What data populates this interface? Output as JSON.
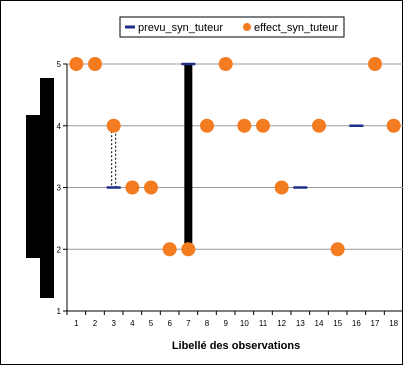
{
  "chart_data": {
    "type": "scatter",
    "xlabel": "Libellé des observations",
    "ylabel": "",
    "title": "",
    "categories": [
      "1",
      "2",
      "3",
      "4",
      "5",
      "6",
      "7",
      "8",
      "9",
      "10",
      "11",
      "12",
      "13",
      "14",
      "15",
      "16",
      "17",
      "18"
    ],
    "yticks": [
      "1",
      "2",
      "3",
      "4",
      "5"
    ],
    "ylim": [
      1,
      5
    ],
    "grid": true,
    "legend_position": "top-right",
    "series": [
      {
        "name": "prevu_syn_tuteur",
        "marker": "dash",
        "color": "#1f2e8a",
        "points": [
          {
            "x": 3,
            "y": 3
          },
          {
            "x": 7,
            "y": 5
          },
          {
            "x": 13,
            "y": 3
          },
          {
            "x": 16,
            "y": 4
          }
        ]
      },
      {
        "name": "effect_syn_tuteur",
        "marker": "circle",
        "color": "#f47c20",
        "points": [
          {
            "x": 1,
            "y": 5
          },
          {
            "x": 2,
            "y": 5
          },
          {
            "x": 3,
            "y": 4
          },
          {
            "x": 4,
            "y": 3
          },
          {
            "x": 5,
            "y": 3
          },
          {
            "x": 6,
            "y": 2
          },
          {
            "x": 7,
            "y": 2
          },
          {
            "x": 8,
            "y": 4
          },
          {
            "x": 9,
            "y": 5
          },
          {
            "x": 10,
            "y": 4
          },
          {
            "x": 11,
            "y": 4
          },
          {
            "x": 12,
            "y": 3
          },
          {
            "x": 14,
            "y": 4
          },
          {
            "x": 15,
            "y": 2
          },
          {
            "x": 17,
            "y": 5
          },
          {
            "x": 18,
            "y": 4
          }
        ]
      }
    ],
    "connectors": [
      {
        "x": 3,
        "from": 3,
        "to": 4,
        "style": "dotted"
      },
      {
        "x": 7,
        "from": 2,
        "to": 5,
        "style": "thick"
      }
    ]
  }
}
